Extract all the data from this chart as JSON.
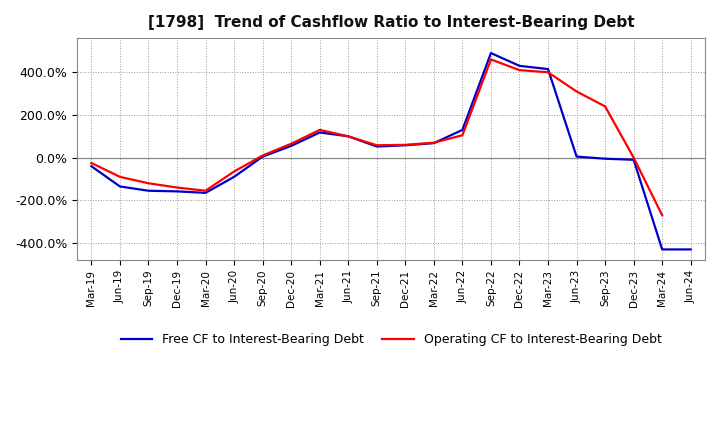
{
  "title": "[1798]  Trend of Cashflow Ratio to Interest-Bearing Debt",
  "x_labels": [
    "Mar-19",
    "Jun-19",
    "Sep-19",
    "Dec-19",
    "Mar-20",
    "Jun-20",
    "Sep-20",
    "Dec-20",
    "Mar-21",
    "Jun-21",
    "Sep-21",
    "Dec-21",
    "Mar-22",
    "Jun-22",
    "Sep-22",
    "Dec-22",
    "Mar-23",
    "Jun-23",
    "Sep-23",
    "Dec-23",
    "Mar-24",
    "Jun-24"
  ],
  "operating_cf": [
    -25,
    -90,
    -120,
    -140,
    -155,
    -65,
    10,
    65,
    130,
    100,
    58,
    60,
    70,
    105,
    460,
    410,
    400,
    310,
    240,
    0,
    -270,
    null
  ],
  "free_cf": [
    -40,
    -135,
    -155,
    -158,
    -165,
    -90,
    5,
    55,
    118,
    100,
    52,
    58,
    68,
    130,
    490,
    430,
    415,
    5,
    -5,
    -10,
    -430,
    -430
  ],
  "operating_color": "#ff0000",
  "free_color": "#0000cc",
  "ylim": [
    -480,
    560
  ],
  "yticks": [
    -400,
    -200,
    0,
    200,
    400
  ],
  "ytick_labels": [
    "-400.0%",
    "-200.0%",
    "0.0%",
    "200.0%",
    "400.0%"
  ],
  "legend_operating": "Operating CF to Interest-Bearing Debt",
  "legend_free": "Free CF to Interest-Bearing Debt",
  "background_color": "#ffffff",
  "plot_bg_color": "#ffffff",
  "grid_color": "#999999",
  "line_width": 1.6
}
